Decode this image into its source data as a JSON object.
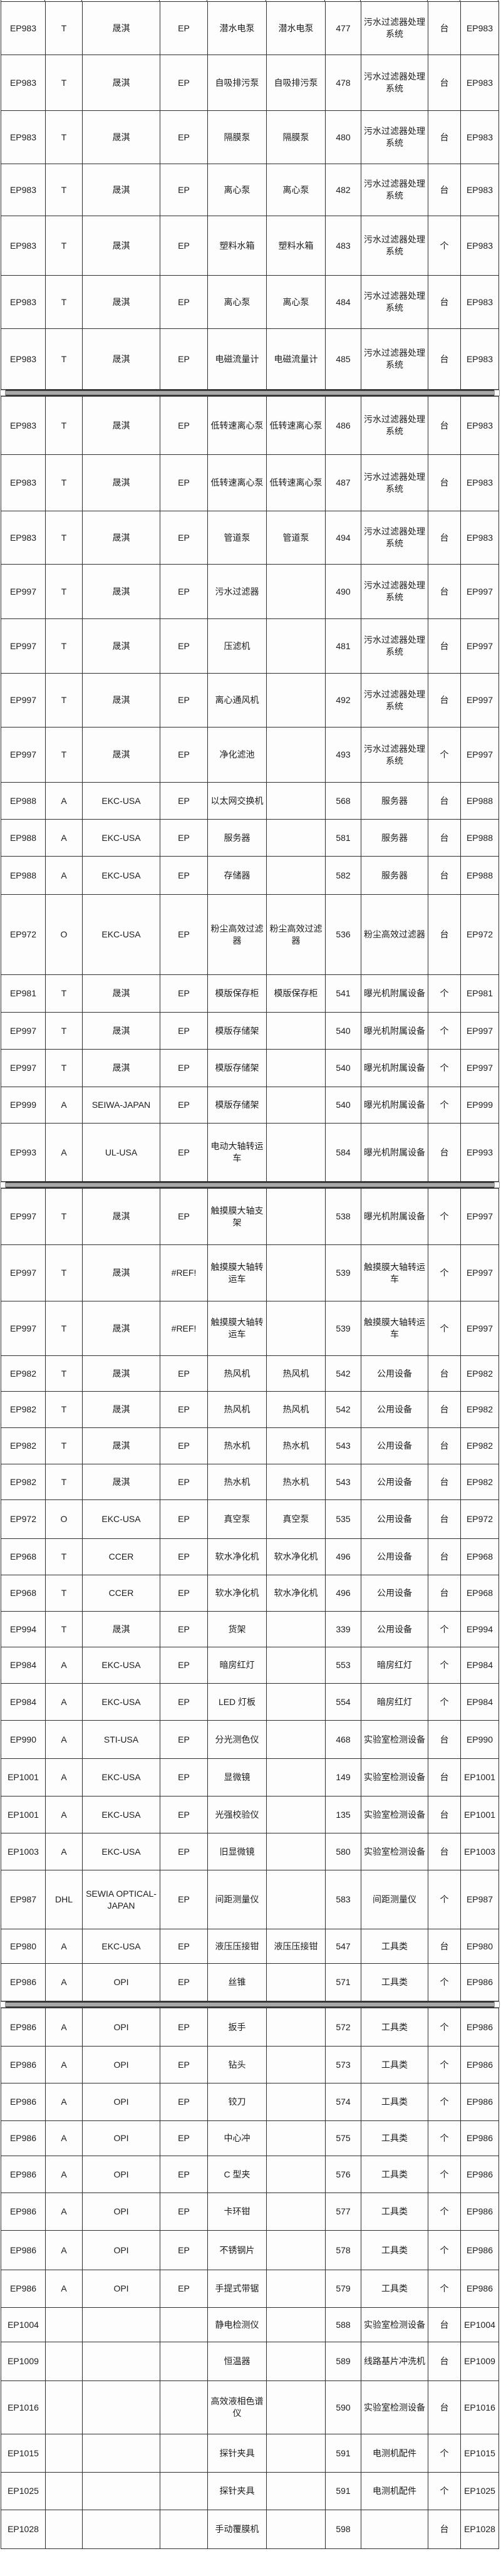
{
  "table": {
    "groups": [
      {
        "rows": [
          [
            "EP983",
            "T",
            "晟淇",
            "EP",
            "潜水电泵",
            "潜水电泵",
            "477",
            "污水过滤器处理系统",
            "台",
            "EP983"
          ],
          [
            "EP983",
            "T",
            "晟淇",
            "EP",
            "自吸排污泵",
            "自吸排污泵",
            "478",
            "污水过滤器处理系统",
            "台",
            "EP983"
          ],
          [
            "EP983",
            "T",
            "晟淇",
            "EP",
            "隔膜泵",
            "隔膜泵",
            "480",
            "污水过滤器处理系统",
            "台",
            "EP983"
          ],
          [
            "EP983",
            "T",
            "晟淇",
            "EP",
            "离心泵",
            "离心泵",
            "482",
            "污水过滤器处理系统",
            "台",
            "EP983"
          ],
          [
            "EP983",
            "T",
            "晟淇",
            "EP",
            "塑料水箱",
            "塑料水箱",
            "483",
            "污水过滤器处理系统",
            "个",
            "EP983"
          ],
          [
            "EP983",
            "T",
            "晟淇",
            "EP",
            "离心泵",
            "离心泵",
            "484",
            "污水过滤器处理系统",
            "台",
            "EP983"
          ],
          [
            "EP983",
            "T",
            "晟淇",
            "EP",
            "电磁流量计",
            "电磁流量计",
            "485",
            "污水过滤器处理系统",
            "台",
            "EP983"
          ]
        ]
      },
      {
        "rows": [
          [
            "EP983",
            "T",
            "晟淇",
            "EP",
            "低转速离心泵",
            "低转速离心泵",
            "486",
            "污水过滤器处理系统",
            "台",
            "EP983"
          ],
          [
            "EP983",
            "T",
            "晟淇",
            "EP",
            "低转速离心泵",
            "低转速离心泵",
            "487",
            "污水过滤器处理系统",
            "台",
            "EP983"
          ],
          [
            "EP983",
            "T",
            "晟淇",
            "EP",
            "管道泵",
            "管道泵",
            "494",
            "污水过滤器处理系统",
            "台",
            "EP983"
          ],
          [
            "EP997",
            "T",
            "晟淇",
            "EP",
            "污水过滤器",
            "",
            "490",
            "污水过滤器处理系统",
            "台",
            "EP997"
          ],
          [
            "EP997",
            "T",
            "晟淇",
            "EP",
            "压滤机",
            "",
            "481",
            "污水过滤器处理系统",
            "台",
            "EP997"
          ],
          [
            "EP997",
            "T",
            "晟淇",
            "EP",
            "离心通风机",
            "",
            "492",
            "污水过滤器处理系统",
            "台",
            "EP997"
          ],
          [
            "EP997",
            "T",
            "晟淇",
            "EP",
            "净化滤池",
            "",
            "493",
            "污水过滤器处理系统",
            "个",
            "EP997"
          ],
          [
            "EP988",
            "A",
            "EKC-USA",
            "EP",
            "以太网交换机",
            "",
            "568",
            "服务器",
            "台",
            "EP988"
          ],
          [
            "EP988",
            "A",
            "EKC-USA",
            "EP",
            "服务器",
            "",
            "581",
            "服务器",
            "台",
            "EP988"
          ],
          [
            "EP988",
            "A",
            "EKC-USA",
            "EP",
            "存储器",
            "",
            "582",
            "服务器",
            "台",
            "EP988"
          ],
          [
            "EP972",
            "O",
            "EKC-USA",
            "EP",
            "粉尘高效过滤器",
            "粉尘高效过滤器",
            "536",
            "粉尘高效过滤器",
            "台",
            "EP972"
          ],
          [
            "EP981",
            "T",
            "晟淇",
            "EP",
            "模版保存柜",
            "模版保存柜",
            "541",
            "曝光机附属设备",
            "个",
            "EP981"
          ],
          [
            "EP997",
            "T",
            "晟淇",
            "EP",
            "模版存储架",
            "",
            "540",
            "曝光机附属设备",
            "个",
            "EP997"
          ],
          [
            "EP997",
            "T",
            "晟淇",
            "EP",
            "模版存储架",
            "",
            "540",
            "曝光机附属设备",
            "个",
            "EP997"
          ],
          [
            "EP999",
            "A",
            "SEIWA-JAPAN",
            "EP",
            "模版存储架",
            "",
            "540",
            "曝光机附属设备",
            "个",
            "EP999"
          ],
          [
            "EP993",
            "A",
            "UL-USA",
            "EP",
            "电动大轴转运车",
            "",
            "584",
            "曝光机附属设备",
            "台",
            "EP993"
          ]
        ]
      },
      {
        "rows": [
          [
            "EP997",
            "T",
            "晟淇",
            "EP",
            "触摸膜大轴支架",
            "",
            "538",
            "曝光机附属设备",
            "个",
            "EP997"
          ],
          [
            "EP997",
            "T",
            "晟淇",
            "#REF!",
            "触摸膜大轴转运车",
            "",
            "539",
            "触摸膜大轴转运车",
            "个",
            "EP997"
          ],
          [
            "EP997",
            "T",
            "晟淇",
            "#REF!",
            "触摸膜大轴转运车",
            "",
            "539",
            "触摸膜大轴转运车",
            "个",
            "EP997"
          ],
          [
            "EP982",
            "T",
            "晟淇",
            "EP",
            "热风机",
            "热风机",
            "542",
            "公用设备",
            "台",
            "EP982"
          ],
          [
            "EP982",
            "T",
            "晟淇",
            "EP",
            "热风机",
            "热风机",
            "542",
            "公用设备",
            "台",
            "EP982"
          ],
          [
            "EP982",
            "T",
            "晟淇",
            "EP",
            "热水机",
            "热水机",
            "543",
            "公用设备",
            "台",
            "EP982"
          ],
          [
            "EP982",
            "T",
            "晟淇",
            "EP",
            "热水机",
            "热水机",
            "543",
            "公用设备",
            "台",
            "EP982"
          ],
          [
            "EP972",
            "O",
            "EKC-USA",
            "EP",
            "真空泵",
            "真空泵",
            "535",
            "公用设备",
            "台",
            "EP972"
          ],
          [
            "EP968",
            "T",
            "CCER",
            "EP",
            "软水净化机",
            "软水净化机",
            "496",
            "公用设备",
            "台",
            "EP968"
          ],
          [
            "EP968",
            "T",
            "CCER",
            "EP",
            "软水净化机",
            "软水净化机",
            "496",
            "公用设备",
            "台",
            "EP968"
          ],
          [
            "EP994",
            "T",
            "晟淇",
            "EP",
            "货架",
            "",
            "339",
            "公用设备",
            "个",
            "EP994"
          ],
          [
            "EP984",
            "A",
            "EKC-USA",
            "EP",
            "暗房红灯",
            "",
            "553",
            "暗房红灯",
            "个",
            "EP984"
          ],
          [
            "EP984",
            "A",
            "EKC-USA",
            "EP",
            "LED 灯板",
            "",
            "554",
            "暗房红灯",
            "个",
            "EP984"
          ],
          [
            "EP990",
            "A",
            "STI-USA",
            "EP",
            "分光测色仪",
            "",
            "468",
            "实验室检测设备",
            "台",
            "EP990"
          ],
          [
            "EP1001",
            "A",
            "EKC-USA",
            "EP",
            "显微镜",
            "",
            "149",
            "实验室检测设备",
            "台",
            "EP1001"
          ],
          [
            "EP1001",
            "A",
            "EKC-USA",
            "EP",
            "光强校验仪",
            "",
            "135",
            "实验室检测设备",
            "台",
            "EP1001"
          ],
          [
            "EP1003",
            "A",
            "EKC-USA",
            "EP",
            "旧显微镜",
            "",
            "580",
            "实验室检测设备",
            "台",
            "EP1003"
          ],
          [
            "EP987",
            "DHL",
            "SEWIA OPTICAL-JAPAN",
            "EP",
            "间距测量仪",
            "",
            "583",
            "间距测量仪",
            "个",
            "EP987"
          ],
          [
            "EP980",
            "A",
            "EKC-USA",
            "EP",
            "液压压接钳",
            "液压压接钳",
            "547",
            "工具类",
            "台",
            "EP980"
          ],
          [
            "EP986",
            "A",
            "OPI",
            "EP",
            "丝锥",
            "",
            "571",
            "工具类",
            "个",
            "EP986"
          ]
        ]
      },
      {
        "rows": [
          [
            "EP986",
            "A",
            "OPI",
            "EP",
            "扳手",
            "",
            "572",
            "工具类",
            "个",
            "EP986"
          ],
          [
            "EP986",
            "A",
            "OPI",
            "EP",
            "钻头",
            "",
            "573",
            "工具类",
            "个",
            "EP986"
          ],
          [
            "EP986",
            "A",
            "OPI",
            "EP",
            "铰刀",
            "",
            "574",
            "工具类",
            "个",
            "EP986"
          ],
          [
            "EP986",
            "A",
            "OPI",
            "EP",
            "中心冲",
            "",
            "575",
            "工具类",
            "个",
            "EP986"
          ],
          [
            "EP986",
            "A",
            "OPI",
            "EP",
            "C 型夹",
            "",
            "576",
            "工具类",
            "个",
            "EP986"
          ],
          [
            "EP986",
            "A",
            "OPI",
            "EP",
            "卡环钳",
            "",
            "577",
            "工具类",
            "个",
            "EP986"
          ],
          [
            "EP986",
            "A",
            "OPI",
            "EP",
            "不锈钢片",
            "",
            "578",
            "工具类",
            "个",
            "EP986"
          ],
          [
            "EP986",
            "A",
            "OPI",
            "EP",
            "手提式带锯",
            "",
            "579",
            "工具类",
            "个",
            "EP986"
          ],
          [
            "EP1004",
            "",
            "",
            "",
            "静电检测仪",
            "",
            "588",
            "实验室检测设备",
            "台",
            "EP1004"
          ],
          [
            "EP1009",
            "",
            "",
            "",
            "恒温器",
            "",
            "589",
            "线路基片冲洗机",
            "台",
            "EP1009"
          ],
          [
            "EP1016",
            "",
            "",
            "",
            "高效液相色谱仪",
            "",
            "590",
            "实验室检测设备",
            "台",
            "EP1016"
          ],
          [
            "EP1015",
            "",
            "",
            "",
            "探针夹具",
            "",
            "591",
            "电测机配件",
            "个",
            "EP1015"
          ],
          [
            "EP1025",
            "",
            "",
            "",
            "探针夹具",
            "",
            "591",
            "电测机配件",
            "个",
            "EP1025"
          ],
          [
            "EP1028",
            "",
            "",
            "",
            "手动覆膜机",
            "",
            "598",
            "",
            "台",
            "EP1028"
          ]
        ]
      }
    ]
  }
}
